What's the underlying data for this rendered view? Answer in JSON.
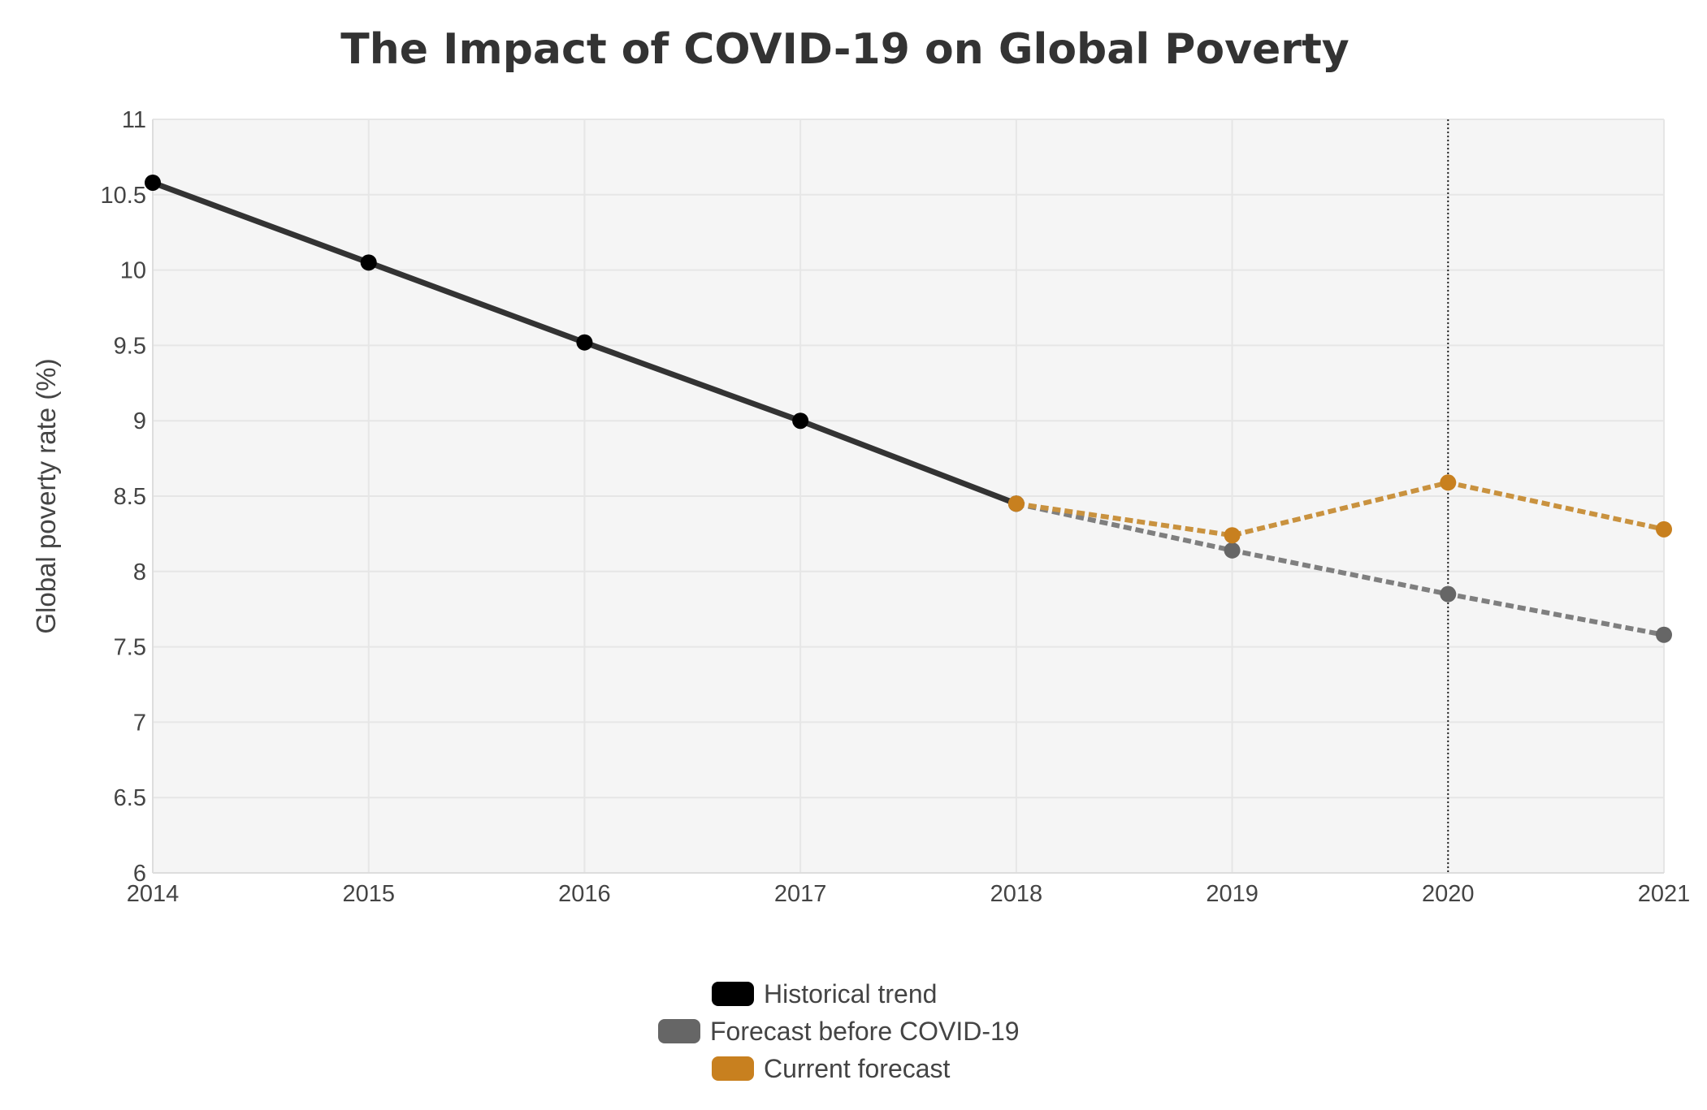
{
  "chart_data": {
    "type": "line",
    "title": "The Impact of COVID-19 on Global Poverty",
    "xlabel": "",
    "ylabel": "Global poverty rate (%)",
    "x": [
      2014,
      2015,
      2016,
      2017,
      2018,
      2019,
      2020,
      2021
    ],
    "x_tick_labels": [
      "2014",
      "2015",
      "2016",
      "2017",
      "2018",
      "2019",
      "2020",
      "2021"
    ],
    "xlim": [
      2014,
      2021
    ],
    "ylim": [
      6,
      11
    ],
    "y_ticks": [
      6,
      6.5,
      7,
      7.5,
      8,
      8.5,
      9,
      9.5,
      10,
      10.5,
      11
    ],
    "y_tick_labels": [
      "6",
      "6.5",
      "7",
      "7.5",
      "8",
      "8.5",
      "9",
      "9.5",
      "10",
      "10.5",
      "11"
    ],
    "grid": true,
    "reference_line": {
      "x": 2020,
      "style": "dotted"
    },
    "legend_position": "bottom-center",
    "series": [
      {
        "name": "Historical trend",
        "color": "#000000",
        "line_color": "#333333",
        "style": "solid",
        "points": [
          [
            2014,
            10.58
          ],
          [
            2015,
            10.05
          ],
          [
            2016,
            9.52
          ],
          [
            2017,
            9.0
          ],
          [
            2018,
            8.45
          ]
        ]
      },
      {
        "name": "Forecast before COVID-19",
        "color": "#666666",
        "line_color": "#7f7f7f",
        "style": "dashed",
        "points": [
          [
            2018,
            8.45
          ],
          [
            2019,
            8.14
          ],
          [
            2020,
            7.85
          ],
          [
            2021,
            7.58
          ]
        ]
      },
      {
        "name": "Current forecast",
        "color": "#c8801f",
        "line_color": "#c9923f",
        "style": "dashed",
        "points": [
          [
            2018,
            8.45
          ],
          [
            2019,
            8.24
          ],
          [
            2020,
            8.59
          ],
          [
            2021,
            8.28
          ]
        ]
      }
    ]
  }
}
